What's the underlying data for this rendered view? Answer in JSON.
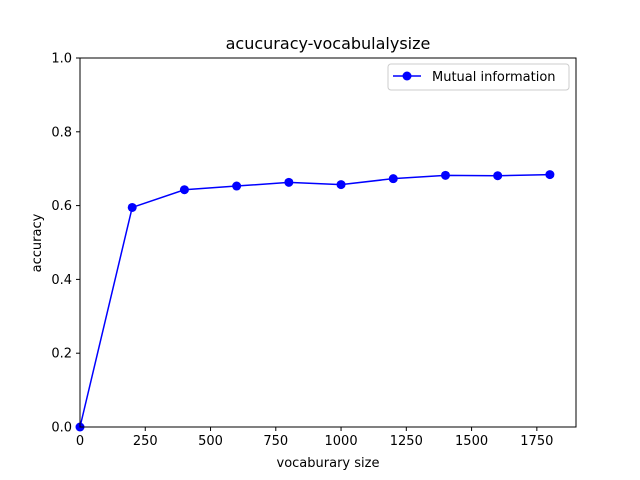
{
  "chart_data": {
    "type": "line",
    "title": "acucuracy-vocabulalysize",
    "xlabel": "vocaburary size",
    "ylabel": "accuracy",
    "xlim": [
      0,
      1900
    ],
    "ylim": [
      0.0,
      1.0
    ],
    "xticks": [
      0,
      250,
      500,
      750,
      1000,
      1250,
      1500,
      1750
    ],
    "xtick_labels": [
      "0",
      "250",
      "500",
      "750",
      "1000",
      "1250",
      "1500",
      "1750"
    ],
    "yticks": [
      0.0,
      0.2,
      0.4,
      0.6,
      0.8,
      1.0
    ],
    "ytick_labels": [
      "0.0",
      "0.2",
      "0.4",
      "0.6",
      "0.8",
      "1.0"
    ],
    "grid": false,
    "legend_position": "top-right",
    "series": [
      {
        "name": "Mutual information",
        "color": "#0000ff",
        "marker": "circle",
        "x": [
          0,
          200,
          400,
          600,
          800,
          1000,
          1200,
          1400,
          1600,
          1800
        ],
        "y": [
          0.0,
          0.595,
          0.643,
          0.653,
          0.663,
          0.657,
          0.673,
          0.682,
          0.681,
          0.684
        ]
      }
    ]
  }
}
